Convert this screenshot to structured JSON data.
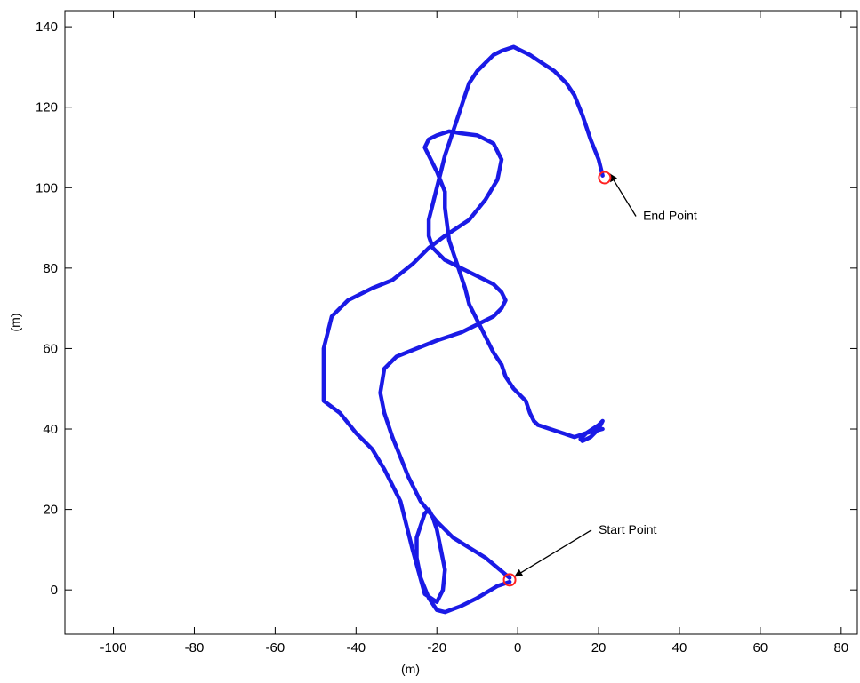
{
  "chart_data": {
    "type": "line",
    "title": "",
    "xlabel": "(m)",
    "ylabel": "(m)",
    "xlim": [
      -112,
      84
    ],
    "ylim": [
      -11,
      144
    ],
    "xticks": [
      -100,
      -80,
      -60,
      -40,
      -20,
      0,
      20,
      40,
      60,
      80
    ],
    "yticks": [
      0,
      20,
      40,
      60,
      80,
      100,
      120,
      140
    ],
    "grid": false,
    "colors": {
      "trajectory": "#1a1ae6",
      "marker": "#ff2020",
      "axes": "#000000"
    },
    "series": [
      {
        "x": [
          -2,
          -5,
          -10,
          -14,
          -18,
          -20,
          -22,
          -24,
          -25,
          -25,
          -24,
          -23,
          -22,
          -21,
          -20,
          -19,
          -18,
          -18.5,
          -20,
          -23,
          -26,
          -29,
          -33,
          -36,
          -40,
          -44,
          -48,
          -48,
          -46,
          -42,
          -36,
          -31,
          -26,
          -22,
          -18,
          -12,
          -8,
          -5,
          -4,
          -6,
          -10,
          -14,
          -17,
          -20,
          -22,
          -23,
          -22,
          -20,
          -18,
          -18,
          -17.5,
          -17,
          -16,
          -15,
          -14,
          -13,
          -12,
          -10,
          -8,
          -6,
          -4,
          -3,
          -1,
          2,
          3,
          4,
          5,
          8,
          11,
          14,
          17,
          20,
          21,
          20,
          18,
          16,
          15.5,
          16,
          17,
          19,
          21
        ],
        "y": [
          2,
          1,
          -2,
          -4,
          -5.5,
          -5,
          -2,
          3,
          8,
          13,
          16,
          19,
          20,
          18,
          15,
          10,
          5,
          0,
          -3,
          -1,
          10,
          22,
          30,
          35,
          39,
          44,
          47,
          60,
          68,
          72,
          75,
          77,
          81,
          85,
          88,
          92,
          97,
          102,
          107,
          111,
          113,
          113.5,
          114,
          113,
          112,
          110,
          108,
          104,
          99,
          95,
          91,
          87,
          84,
          81,
          78,
          75,
          71,
          67,
          63,
          59,
          56,
          53,
          50,
          47,
          44,
          42,
          41,
          40,
          39,
          38,
          39,
          41,
          42,
          40,
          38,
          37,
          37.5,
          38,
          39,
          39.5,
          40
        ]
      },
      {
        "x": [
          -2,
          -8,
          -16,
          -20,
          -24,
          -27,
          -29,
          -31,
          -33,
          -34,
          -33,
          -30,
          -25,
          -20,
          -14,
          -10,
          -6,
          -4,
          -3,
          -4,
          -6,
          -10,
          -14,
          -18,
          -21,
          -22,
          -22,
          -21,
          -20,
          -19,
          -18,
          -17,
          -16,
          -15,
          -14,
          -13,
          -12,
          -10,
          -8,
          -6,
          -4,
          -1,
          3,
          6,
          9,
          12,
          14,
          16,
          18,
          20,
          21
        ],
        "y": [
          3,
          8,
          13,
          17,
          22,
          28,
          33,
          38,
          44,
          49,
          55,
          58,
          60,
          62,
          64,
          66,
          68,
          70,
          72,
          74,
          76,
          78,
          80,
          82,
          85,
          88,
          92,
          96,
          100,
          104,
          108,
          111,
          114,
          117,
          120,
          123,
          126,
          129,
          131,
          133,
          134,
          135,
          133,
          131,
          129,
          126,
          123,
          118,
          112,
          107,
          103
        ]
      }
    ],
    "markers": [
      {
        "name": "start",
        "x": -2,
        "y": 2.5
      },
      {
        "name": "end",
        "x": 21.5,
        "y": 102.5
      }
    ],
    "annotations": [
      {
        "text": "Start Point",
        "x": 20,
        "y": 14,
        "arrow_to": [
          -2,
          2.5
        ]
      },
      {
        "text": "End Point",
        "x": 31,
        "y": 92,
        "arrow_to": [
          21.5,
          102.5
        ]
      }
    ]
  }
}
